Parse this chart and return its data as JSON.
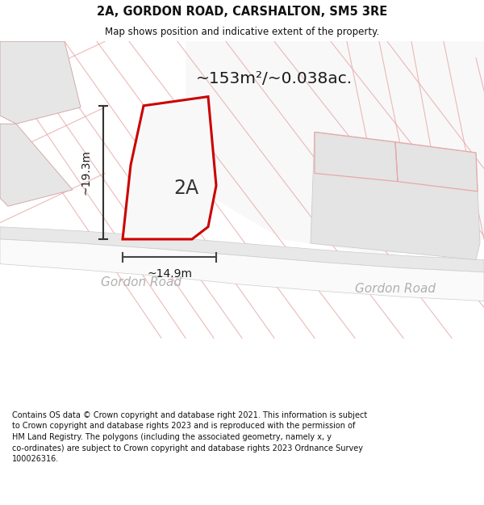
{
  "title": "2A, GORDON ROAD, CARSHALTON, SM5 3RE",
  "subtitle": "Map shows position and indicative extent of the property.",
  "area_label": "~153m²/~0.038ac.",
  "plot_label": "2A",
  "width_label": "~14.9m",
  "height_label": "~19.3m",
  "road_label_1": "Gordon Road",
  "road_label_2": "Gordon Road",
  "footer": "Contains OS data © Crown copyright and database right 2021. This information is subject\nto Crown copyright and database rights 2023 and is reproduced with the permission of\nHM Land Registry. The polygons (including the associated geometry, namely x, y\nco-ordinates) are subject to Crown copyright and database rights 2023 Ordnance Survey\n100026316.",
  "bg_color": "#efefef",
  "plot_fill": "#f5f5f5",
  "plot_edge": "#cc0000",
  "pink": "#e8a8a8",
  "light_grey": "#e0e0e0",
  "white_area": "#f8f8f8",
  "road_white": "#fafafa",
  "footer_bg": "#ffffff",
  "title_color": "#111111",
  "dim_color": "#333333",
  "road_text_color": "#b0b0b0",
  "footer_color": "#111111"
}
